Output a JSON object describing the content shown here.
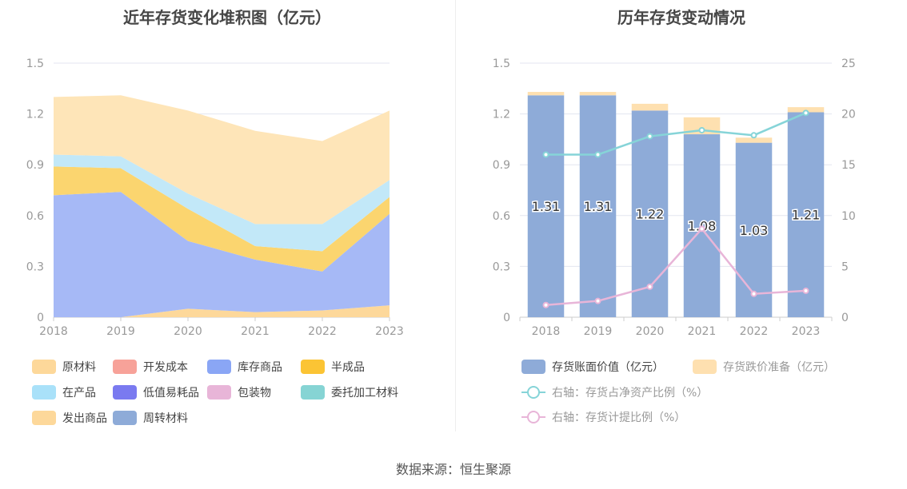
{
  "left_title": "近年存货变化堆积图（亿元）",
  "right_title": "历年存货变动情况",
  "source": "数据来源：恒生聚源",
  "chart_data": [
    {
      "type": "area",
      "stacked": true,
      "title": "近年存货变化堆积图（亿元）",
      "x": [
        "2018",
        "2019",
        "2020",
        "2021",
        "2022",
        "2023"
      ],
      "ylim": [
        0,
        1.5
      ],
      "yticks": [
        "0",
        "0.3",
        "0.6",
        "0.9",
        "1.2",
        "1.5"
      ],
      "grid": true,
      "legend_position": "bottom",
      "series": [
        {
          "name": "原材料",
          "color": "#fdd89a",
          "values": [
            0.0,
            0.0,
            0.05,
            0.03,
            0.04,
            0.07
          ]
        },
        {
          "name": "开发成本",
          "color": "#f7a299",
          "values": [
            0,
            0,
            0,
            0,
            0,
            0
          ]
        },
        {
          "name": "库存商品",
          "color": "#a6b9f6",
          "values": [
            0.72,
            0.74,
            0.4,
            0.31,
            0.23,
            0.54
          ]
        },
        {
          "name": "半成品",
          "color": "#fbd56f",
          "values": [
            0.17,
            0.14,
            0.19,
            0.08,
            0.12,
            0.1
          ]
        },
        {
          "name": "在产品",
          "color": "#c2e8f8",
          "values": [
            0.07,
            0.07,
            0.09,
            0.13,
            0.16,
            0.1
          ]
        },
        {
          "name": "低值易耗品",
          "color": "#7a7af0",
          "values": [
            0,
            0,
            0,
            0,
            0,
            0
          ]
        },
        {
          "name": "包装物",
          "color": "#e8b5d8",
          "values": [
            0,
            0,
            0,
            0,
            0,
            0
          ]
        },
        {
          "name": "委托加工材料",
          "color": "#86d4d4",
          "values": [
            0,
            0,
            0,
            0,
            0,
            0
          ]
        },
        {
          "name": "发出商品",
          "color": "#fee5b8",
          "values": [
            0.34,
            0.36,
            0.49,
            0.55,
            0.49,
            0.41
          ]
        },
        {
          "name": "周转材料",
          "color": "#8eabd8",
          "values": [
            0.0,
            0.0,
            0.0,
            0.0,
            0.0,
            0.0
          ]
        }
      ],
      "legend_swatch_colors": [
        "#fdd89a",
        "#f7a299",
        "#8aa6f5",
        "#fbc434",
        "#a9e1f9",
        "#7a7af0",
        "#e8b5d8",
        "#86d4d4",
        "#fdd89a",
        "#8eabd8"
      ]
    },
    {
      "type": "bar",
      "stacked": true,
      "title": "历年存货变动情况",
      "categories": [
        "2018",
        "2019",
        "2020",
        "2021",
        "2022",
        "2023"
      ],
      "ylim": [
        0,
        1.5
      ],
      "yticks": [
        "0",
        "0.3",
        "0.6",
        "0.9",
        "1.2",
        "1.5"
      ],
      "y2lim": [
        0,
        25
      ],
      "y2ticks": [
        "0",
        "5",
        "10",
        "15",
        "20",
        "25"
      ],
      "grid": true,
      "legend_position": "bottom",
      "series": [
        {
          "name": "存货账面价值（亿元）",
          "type": "bar",
          "color": "#8eabd8",
          "values": [
            1.31,
            1.31,
            1.22,
            1.08,
            1.03,
            1.21
          ],
          "labels": [
            "1.31",
            "1.31",
            "1.22",
            "1.08",
            "1.03",
            "1.21"
          ]
        },
        {
          "name": "存货跌价准备（亿元）",
          "type": "bar",
          "color": "#fee0b0",
          "values": [
            0.02,
            0.02,
            0.04,
            0.1,
            0.03,
            0.03
          ]
        },
        {
          "name": "右轴：存货占净资产比例（%）",
          "type": "line",
          "axis": "right",
          "color": "#86d4d8",
          "values": [
            16.0,
            16.0,
            17.8,
            18.4,
            17.9,
            20.1
          ]
        },
        {
          "name": "右轴：存货计提比例（%）",
          "type": "line",
          "axis": "right",
          "color": "#e8b5d8",
          "values": [
            1.2,
            1.6,
            3.0,
            8.7,
            2.3,
            2.6
          ]
        }
      ]
    }
  ]
}
